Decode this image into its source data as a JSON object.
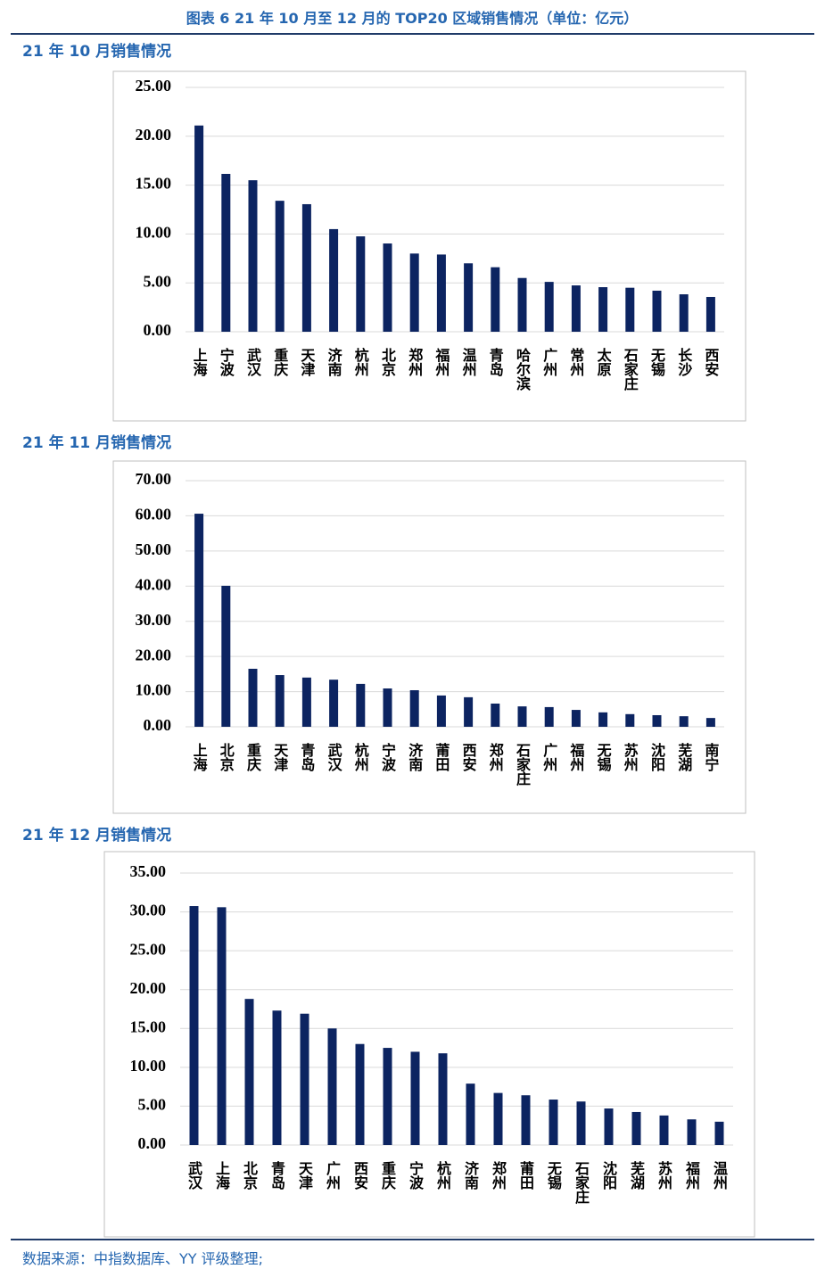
{
  "title": "图表 6 21 年 10 月至 12 月的 TOP20 区域销售情况（单位：亿元）",
  "source": "数据来源：中指数据库、YY 评级整理;",
  "chart_data": [
    {
      "type": "bar",
      "title": "21 年 10 月销售情况",
      "color": "#0c2461",
      "grid": true,
      "categories": [
        "上海",
        "宁波",
        "武汉",
        "重庆",
        "天津",
        "济南",
        "杭州",
        "北京",
        "郑州",
        "福州",
        "温州",
        "青岛",
        "哈尔滨",
        "广州",
        "常州",
        "太原",
        "石家庄",
        "无锡",
        "长沙",
        "西安"
      ],
      "values": [
        21.1,
        16.15,
        15.5,
        13.4,
        13.05,
        10.5,
        9.76,
        9.03,
        8.0,
        7.9,
        7.0,
        6.6,
        5.5,
        5.1,
        4.74,
        4.56,
        4.5,
        4.2,
        3.83,
        3.56
      ],
      "ylim": [
        0,
        25
      ],
      "yticks": [
        {
          "value": 0,
          "label": "0.00"
        },
        {
          "value": 5,
          "label": "5.00"
        },
        {
          "value": 10,
          "label": "10.00"
        },
        {
          "value": 15,
          "label": "15.00"
        },
        {
          "value": 20,
          "label": "20.00"
        },
        {
          "value": 25,
          "label": "25.00"
        }
      ]
    },
    {
      "type": "bar",
      "title": "21 年 11 月销售情况",
      "color": "#0c2461",
      "grid": true,
      "categories": [
        "上海",
        "北京",
        "重庆",
        "天津",
        "青岛",
        "武汉",
        "杭州",
        "宁波",
        "济南",
        "莆田",
        "西安",
        "郑州",
        "石家庄",
        "广州",
        "福州",
        "无锡",
        "苏州",
        "沈阳",
        "芜湖",
        "南宁"
      ],
      "values": [
        60.6,
        40.1,
        16.5,
        14.7,
        14.0,
        13.4,
        12.2,
        10.9,
        10.4,
        8.9,
        8.4,
        6.6,
        5.8,
        5.6,
        4.8,
        4.1,
        3.6,
        3.3,
        3.0,
        2.5
      ],
      "ylim": [
        0,
        70
      ],
      "yticks": [
        {
          "value": 0,
          "label": "0.00"
        },
        {
          "value": 10,
          "label": "10.00"
        },
        {
          "value": 20,
          "label": "20.00"
        },
        {
          "value": 30,
          "label": "30.00"
        },
        {
          "value": 40,
          "label": "40.00"
        },
        {
          "value": 50,
          "label": "50.00"
        },
        {
          "value": 60,
          "label": "60.00"
        },
        {
          "value": 70,
          "label": "70.00"
        }
      ]
    },
    {
      "type": "bar",
      "title": "21 年 12 月销售情况",
      "color": "#0c2461",
      "grid": true,
      "categories": [
        "武汉",
        "上海",
        "北京",
        "青岛",
        "天津",
        "广州",
        "西安",
        "重庆",
        "宁波",
        "杭州",
        "济南",
        "郑州",
        "莆田",
        "无锡",
        "石家庄",
        "沈阳",
        "芜湖",
        "苏州",
        "福州",
        "温州"
      ],
      "values": [
        30.75,
        30.6,
        18.8,
        17.3,
        16.9,
        15.0,
        13.0,
        12.5,
        12.0,
        11.8,
        7.9,
        6.7,
        6.4,
        5.85,
        5.6,
        4.7,
        4.25,
        3.8,
        3.3,
        3.0
      ],
      "ylim": [
        0,
        35
      ],
      "yticks": [
        {
          "value": 0,
          "label": "0.00"
        },
        {
          "value": 5,
          "label": "5.00"
        },
        {
          "value": 10,
          "label": "10.00"
        },
        {
          "value": 15,
          "label": "15.00"
        },
        {
          "value": 20,
          "label": "20.00"
        },
        {
          "value": 25,
          "label": "25.00"
        },
        {
          "value": 30,
          "label": "30.00"
        },
        {
          "value": 35,
          "label": "35.00"
        }
      ]
    }
  ]
}
